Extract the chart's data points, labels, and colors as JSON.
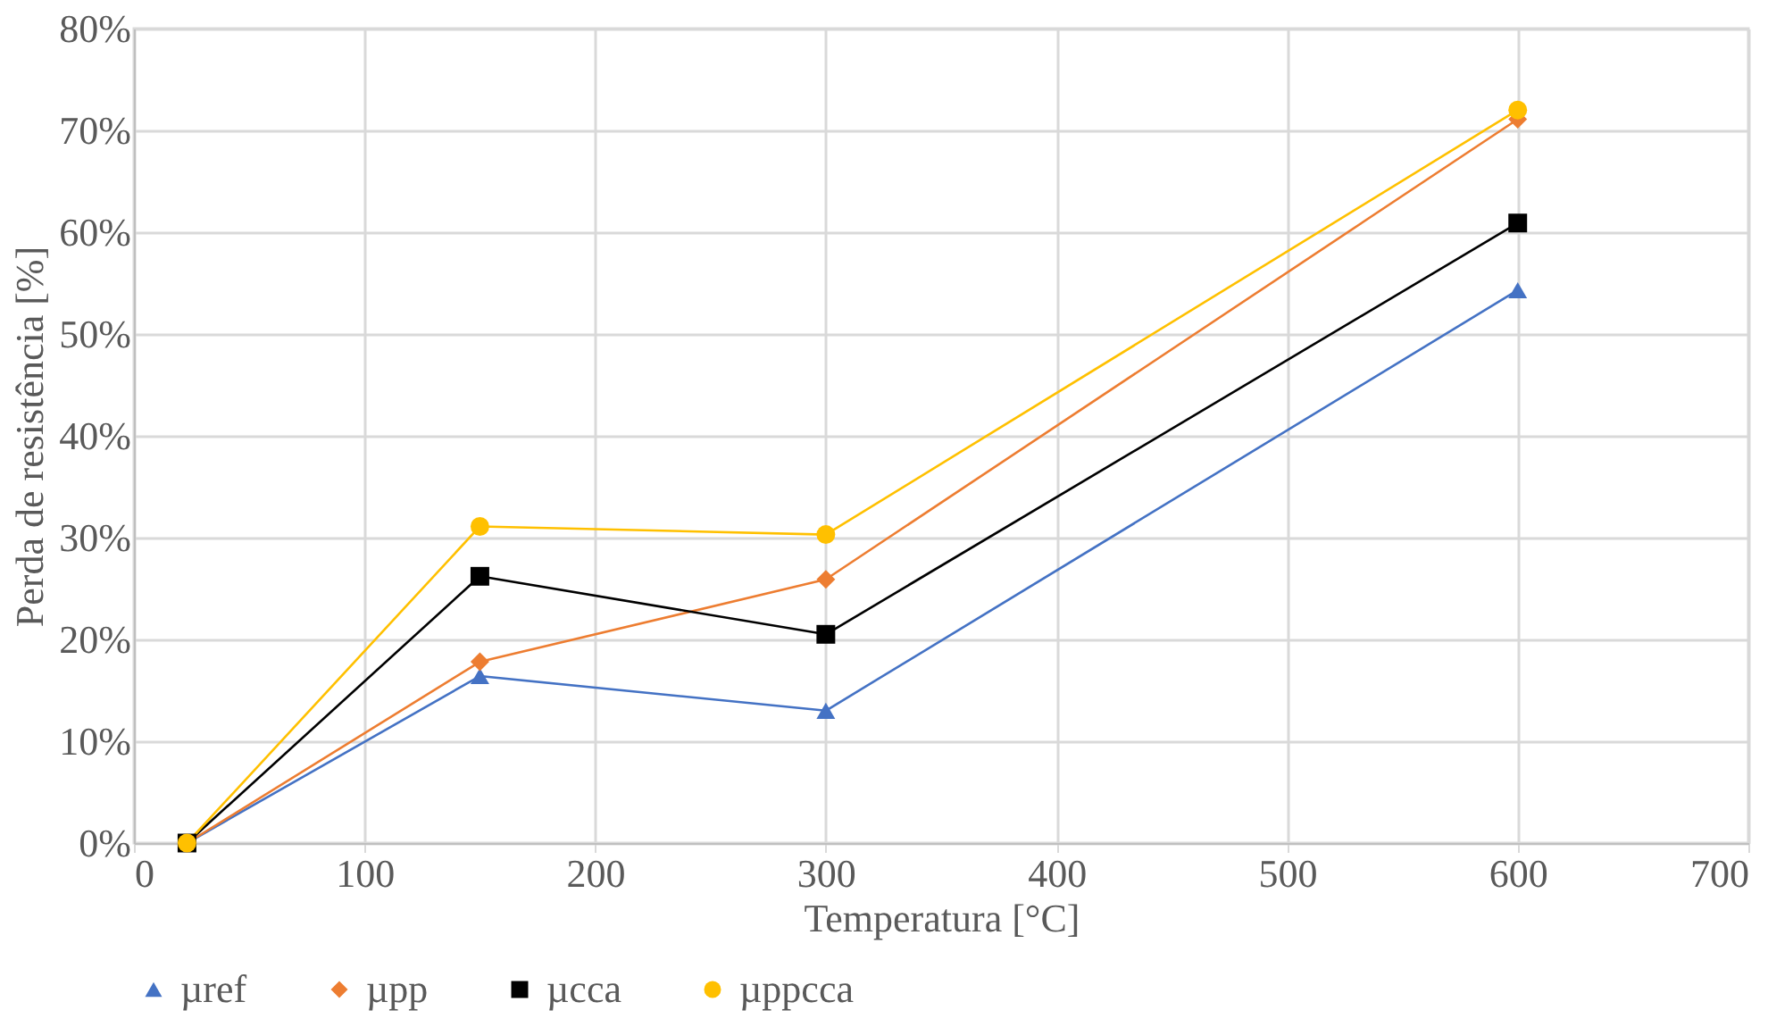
{
  "chart_data": {
    "type": "line",
    "xlabel": "Temperatura [°C]",
    "ylabel": "Perda de resistência [%]",
    "x": [
      23,
      150,
      300,
      600
    ],
    "series": [
      {
        "name": "µref",
        "color": "#4472c4",
        "marker": "triangle",
        "values": [
          0,
          16.4,
          13.0,
          54.3
        ]
      },
      {
        "name": "µpp",
        "color": "#ed7d31",
        "marker": "diamond",
        "values": [
          0,
          17.8,
          25.9,
          71.1
        ]
      },
      {
        "name": "µcca",
        "color": "#000000",
        "marker": "square",
        "values": [
          0,
          26.2,
          20.5,
          60.9
        ]
      },
      {
        "name": "µppcca",
        "color": "#ffc000",
        "marker": "circle",
        "values": [
          0,
          31.1,
          30.3,
          72.0
        ]
      }
    ],
    "xlim": [
      0,
      700
    ],
    "xticks": [
      0,
      100,
      200,
      300,
      400,
      500,
      600,
      700
    ],
    "ylim": [
      0,
      80
    ],
    "yticks": [
      {
        "value": 0,
        "label": "0%"
      },
      {
        "value": 10,
        "label": "10%"
      },
      {
        "value": 20,
        "label": "20%"
      },
      {
        "value": 30,
        "label": "30%"
      },
      {
        "value": 40,
        "label": "40%"
      },
      {
        "value": 50,
        "label": "50%"
      },
      {
        "value": 60,
        "label": "60%"
      },
      {
        "value": 70,
        "label": "70%"
      },
      {
        "value": 80,
        "label": "80%"
      }
    ],
    "grid": true,
    "legend": "bottom",
    "line_style": "solid"
  }
}
